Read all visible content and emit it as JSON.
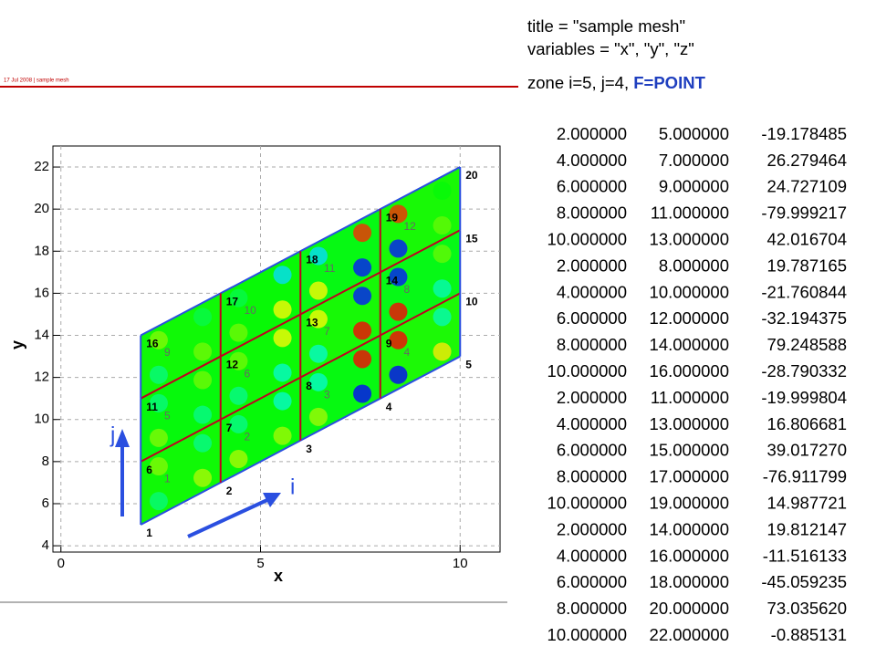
{
  "header": [
    "title = \"sample mesh\"",
    "variables = \"x\", \"y\", \"z\""
  ],
  "zone": {
    "text": "zone i=5, j=4,",
    "format": "F=POINT"
  },
  "points": [
    {
      "label": "1",
      "x": "2.000000",
      "y": "5.000000",
      "z": "-19.178485"
    },
    {
      "label": "2",
      "x": "4.000000",
      "y": "7.000000",
      "z": "26.279464"
    },
    {
      "label": "3",
      "x": "6.000000",
      "y": "9.000000",
      "z": "24.727109"
    },
    {
      "label": "4",
      "x": "8.000000",
      "y": "11.000000",
      "z": "-79.999217"
    },
    {
      "label": "5",
      "x": "10.000000",
      "y": "13.000000",
      "z": "42.016704"
    },
    {
      "label": "6",
      "x": "2.000000",
      "y": "8.000000",
      "z": "19.787165"
    },
    {
      "label": "7",
      "x": "4.000000",
      "y": "10.000000",
      "z": "-21.760844"
    },
    {
      "label": "8",
      "x": "6.000000",
      "y": "12.000000",
      "z": "-32.194375"
    },
    {
      "label": "9",
      "x": "8.000000",
      "y": "14.000000",
      "z": "79.248588"
    },
    {
      "label": "10",
      "x": "10.000000",
      "y": "16.000000",
      "z": "-28.790332"
    },
    {
      "label": "11",
      "x": "2.000000",
      "y": "11.000000",
      "z": "-19.999804"
    },
    {
      "label": "12",
      "x": "4.000000",
      "y": "13.000000",
      "z": "16.806681"
    },
    {
      "label": "13",
      "x": "6.000000",
      "y": "15.000000",
      "z": "39.017270"
    },
    {
      "label": "14",
      "x": "8.000000",
      "y": "17.000000",
      "z": "-76.911799"
    },
    {
      "label": "15",
      "x": "10.000000",
      "y": "19.000000",
      "z": "14.987721"
    },
    {
      "label": "16",
      "x": "2.000000",
      "y": "14.000000",
      "z": "19.812147"
    },
    {
      "label": "17",
      "x": "4.000000",
      "y": "16.000000",
      "z": "-11.516133"
    },
    {
      "label": "18",
      "x": "6.000000",
      "y": "18.000000",
      "z": "-45.059235"
    },
    {
      "label": "19",
      "x": "8.000000",
      "y": "20.000000",
      "z": "73.035620"
    },
    {
      "label": "20",
      "x": "10.000000",
      "y": "22.000000",
      "z": "-0.885131"
    }
  ],
  "plot": {
    "banner": "17 Jul 2008 | sample mesh",
    "x_label": "x",
    "y_label": "y",
    "xlim": [
      -0.2,
      11
    ],
    "ylim": [
      3.7,
      23
    ],
    "xticks": [
      0,
      5,
      10
    ],
    "yticks": [
      4,
      6,
      8,
      10,
      12,
      14,
      16,
      18,
      20,
      22
    ],
    "cells": [
      "1",
      "2",
      "3",
      "4",
      "5",
      "6",
      "7",
      "8",
      "9",
      "10",
      "11",
      "12"
    ],
    "i_label": "i",
    "j_label": "j"
  }
}
